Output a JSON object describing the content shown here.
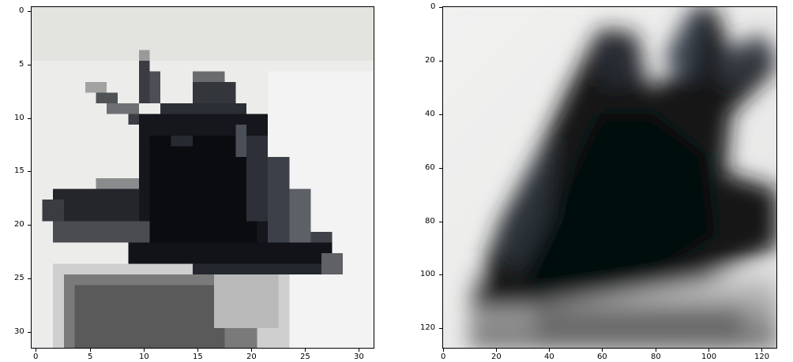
{
  "figure": {
    "left_panel": {
      "x_ticks": [
        "0",
        "5",
        "10",
        "15",
        "20",
        "25",
        "30"
      ],
      "y_ticks": [
        "0",
        "5",
        "10",
        "15",
        "20",
        "25",
        "30"
      ],
      "image_description_px": "32x32 pixelated grayscale photo of a dark hand-like shape",
      "xlim": [
        0,
        32
      ],
      "ylim": [
        32,
        0
      ]
    },
    "right_panel": {
      "x_ticks": [
        "0",
        "20",
        "40",
        "60",
        "80",
        "100",
        "120"
      ],
      "y_ticks": [
        "0",
        "20",
        "40",
        "60",
        "80",
        "100",
        "120"
      ],
      "image_description_px": "128x128 smoothed upscaled photo of the same dark hand-like shape",
      "xlim": [
        0,
        128
      ],
      "ylim": [
        128,
        0
      ]
    },
    "colors": {
      "background": "#ffffff",
      "bright": "#efefec",
      "mid": "#8f8e8d",
      "dark": "#1e2127",
      "darkest": "#08090c"
    }
  }
}
